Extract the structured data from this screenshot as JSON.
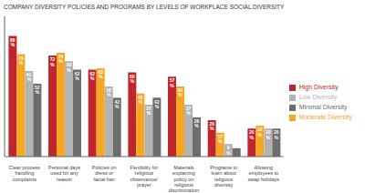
{
  "chart_data": {
    "type": "bar",
    "title": "COMPANY DIVERSITY POLICIES AND PROGRAMS BY LEVELS OF WORKPLACE SOCIAL DIVERSITY",
    "categories": [
      "Clear process\nhandling\ncomplaints",
      "Personal days\nused for any\nreason",
      "Policies on\ndress or\nfacial hair",
      "Flexibility for\nreligious\nobservance/\nprayer",
      "Materials\nexplaining\npolicy on\nreligious\ndiscrimination",
      "Programs to\nlearn about\nreligious\ndiversity",
      "Allowing\nemployees to\nswap holidays"
    ],
    "series": [
      {
        "name": "High Diversity",
        "color": "#c0272d",
        "values": [
          86,
          72,
          62,
          60,
          57,
          26,
          20
        ],
        "value_labels": [
          "86\n%",
          "72\n%",
          "62\n%",
          "60\n%",
          "57\n%",
          "26\n%",
          "20\n%"
        ]
      },
      {
        "name": "Moderate Diversity",
        "color": "#f5a623",
        "values": [
          73,
          74,
          63,
          45,
          50,
          17,
          22
        ],
        "value_labels": [
          "73\n%",
          "74\n%",
          "63\n%",
          "45\n%",
          "50\n%",
          "17\n%",
          "22\n%"
        ]
      },
      {
        "name": "Low Diversity",
        "color": "#b3b3b3",
        "values": [
          61,
          68,
          50,
          37,
          37,
          9,
          20
        ],
        "value_labels": [
          "61\n%",
          "68\n%",
          "50\n%",
          "37\n%",
          "37\n%",
          "9\n%",
          "20\n%"
        ]
      },
      {
        "name": "Minimal Diversity",
        "color": "#6d6d6d",
        "values": [
          52,
          62,
          42,
          42,
          28,
          6,
          20
        ],
        "value_labels": [
          "52\n%",
          "62\n%",
          "42\n%",
          "42\n%",
          "28\n%",
          null,
          "20\n%"
        ]
      }
    ],
    "ylim": [
      0,
      100
    ],
    "grid": false,
    "legend": "right",
    "data_labels": true,
    "tick_labels": "x"
  }
}
